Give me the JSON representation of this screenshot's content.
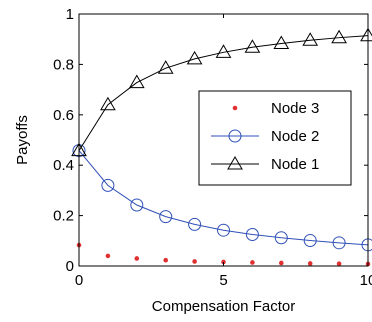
{
  "chart_data": {
    "type": "line",
    "xlabel": "Compensation Factor",
    "ylabel": "Payoffs",
    "xlim": [
      0,
      10
    ],
    "ylim": [
      0,
      1
    ],
    "xticks": [
      "0",
      "5",
      "10"
    ],
    "yticks": [
      "0",
      "0.2",
      "0.4",
      "0.6",
      "0.8",
      "1"
    ],
    "legend_position": "center-right",
    "grid": false,
    "x": [
      0,
      1,
      2,
      3,
      4,
      5,
      6,
      7,
      8,
      9,
      10
    ],
    "series": [
      {
        "name": "Node 3",
        "marker": "dot",
        "color": "#e03030",
        "line": false,
        "values": [
          0.083,
          0.04,
          0.03,
          0.023,
          0.018,
          0.016,
          0.014,
          0.012,
          0.01,
          0.009,
          0.008
        ]
      },
      {
        "name": "Node 2",
        "marker": "circle",
        "color": "#3050b8",
        "line": true,
        "values": [
          0.458,
          0.32,
          0.242,
          0.196,
          0.165,
          0.142,
          0.125,
          0.112,
          0.101,
          0.092,
          0.084
        ]
      },
      {
        "name": "Node 1",
        "marker": "triangle",
        "color": "#000000",
        "line": true,
        "values": [
          0.458,
          0.64,
          0.728,
          0.785,
          0.822,
          0.848,
          0.868,
          0.883,
          0.896,
          0.906,
          0.914
        ]
      }
    ],
    "legend_order": [
      0,
      1,
      2
    ]
  }
}
